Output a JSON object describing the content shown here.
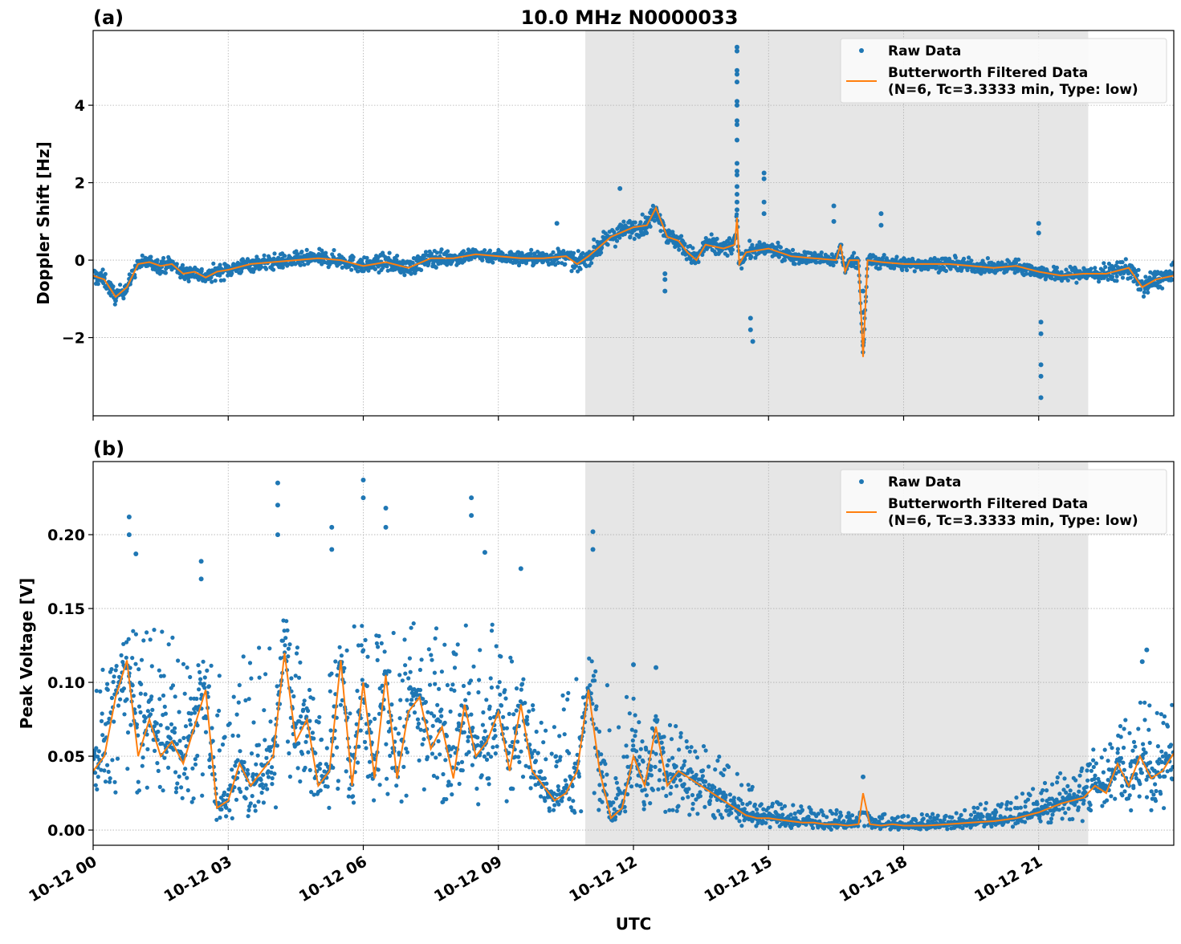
{
  "title": "10.0 MHz N0000033",
  "colors": {
    "raw": "#1f77b4",
    "filtered": "#ff7f0e",
    "shade": "#e6e6e6",
    "grid": "#b0b0b0"
  },
  "shaded_interval_hours": [
    10.93,
    22.1
  ],
  "x_axis": {
    "label": "UTC",
    "range_hours": [
      0,
      24
    ],
    "ticks": [
      {
        "hour": 0,
        "label": "10-12 00"
      },
      {
        "hour": 3,
        "label": "10-12 03"
      },
      {
        "hour": 6,
        "label": "10-12 06"
      },
      {
        "hour": 9,
        "label": "10-12 09"
      },
      {
        "hour": 12,
        "label": "10-12 12"
      },
      {
        "hour": 15,
        "label": "10-12 15"
      },
      {
        "hour": 18,
        "label": "10-12 18"
      },
      {
        "hour": 21,
        "label": "10-12 21"
      }
    ]
  },
  "legend": {
    "raw": "Raw Data",
    "filtered_line1": "Butterworth Filtered Data",
    "filtered_line2": "(N=6, Tc=3.3333 min, Type: low)",
    "placement": "top-right"
  },
  "chart_data": [
    {
      "type": "scatter+line",
      "panel_label": "(a)",
      "ylabel": "Doppler Shift [Hz]",
      "ylim": [
        -4.02,
        5.93
      ],
      "yticks": [
        {
          "v": -2,
          "label": "−2"
        },
        {
          "v": 0,
          "label": "0"
        },
        {
          "v": 2,
          "label": "2"
        },
        {
          "v": 4,
          "label": "4"
        }
      ],
      "grid": true,
      "filtered": [
        [
          0,
          -0.4
        ],
        [
          0.25,
          -0.5
        ],
        [
          0.5,
          -0.95
        ],
        [
          0.75,
          -0.7
        ],
        [
          1.0,
          -0.1
        ],
        [
          1.25,
          -0.05
        ],
        [
          1.5,
          -0.15
        ],
        [
          1.75,
          -0.1
        ],
        [
          2.0,
          -0.35
        ],
        [
          2.25,
          -0.3
        ],
        [
          2.5,
          -0.45
        ],
        [
          2.75,
          -0.3
        ],
        [
          3.0,
          -0.25
        ],
        [
          3.5,
          -0.1
        ],
        [
          4.0,
          -0.05
        ],
        [
          4.5,
          0.0
        ],
        [
          5.0,
          0.05
        ],
        [
          5.5,
          0.0
        ],
        [
          6.0,
          -0.15
        ],
        [
          6.5,
          -0.05
        ],
        [
          7.0,
          -0.2
        ],
        [
          7.5,
          0.05
        ],
        [
          8.0,
          0.05
        ],
        [
          8.5,
          0.15
        ],
        [
          9.0,
          0.1
        ],
        [
          9.5,
          0.05
        ],
        [
          10.0,
          0.05
        ],
        [
          10.5,
          0.1
        ],
        [
          10.75,
          -0.1
        ],
        [
          11.0,
          0.1
        ],
        [
          11.5,
          0.6
        ],
        [
          12.0,
          0.85
        ],
        [
          12.3,
          0.9
        ],
        [
          12.5,
          1.35
        ],
        [
          12.75,
          0.6
        ],
        [
          13.0,
          0.5
        ],
        [
          13.2,
          0.2
        ],
        [
          13.4,
          0.0
        ],
        [
          13.6,
          0.4
        ],
        [
          14.0,
          0.3
        ],
        [
          14.25,
          0.4
        ],
        [
          14.3,
          1.1
        ],
        [
          14.35,
          -0.1
        ],
        [
          14.5,
          0.2
        ],
        [
          15.0,
          0.3
        ],
        [
          15.5,
          0.1
        ],
        [
          16.0,
          0.05
        ],
        [
          16.5,
          0.0
        ],
        [
          16.6,
          0.4
        ],
        [
          16.7,
          -0.3
        ],
        [
          16.8,
          0.0
        ],
        [
          17.0,
          0.0
        ],
        [
          17.1,
          -2.5
        ],
        [
          17.2,
          0.0
        ],
        [
          17.5,
          -0.05
        ],
        [
          18.0,
          -0.1
        ],
        [
          18.5,
          -0.1
        ],
        [
          19.0,
          -0.1
        ],
        [
          19.5,
          -0.15
        ],
        [
          20.0,
          -0.2
        ],
        [
          20.5,
          -0.15
        ],
        [
          21.0,
          -0.3
        ],
        [
          21.5,
          -0.4
        ],
        [
          22.0,
          -0.35
        ],
        [
          22.5,
          -0.35
        ],
        [
          23.0,
          -0.2
        ],
        [
          23.3,
          -0.7
        ],
        [
          23.6,
          -0.5
        ],
        [
          24.0,
          -0.4
        ]
      ],
      "raw_spread": [
        [
          0,
          0.4
        ],
        [
          1,
          0.3
        ],
        [
          2,
          0.35
        ],
        [
          3,
          0.35
        ],
        [
          4,
          0.35
        ],
        [
          5,
          0.35
        ],
        [
          6,
          0.35
        ],
        [
          7,
          0.4
        ],
        [
          8,
          0.35
        ],
        [
          9,
          0.3
        ],
        [
          10,
          0.35
        ],
        [
          11,
          0.4
        ],
        [
          12,
          0.45
        ],
        [
          13,
          0.4
        ],
        [
          14,
          0.45
        ],
        [
          15,
          0.3
        ],
        [
          16,
          0.3
        ],
        [
          17,
          0.3
        ],
        [
          18,
          0.3
        ],
        [
          19,
          0.3
        ],
        [
          20,
          0.3
        ],
        [
          21,
          0.3
        ],
        [
          22,
          0.35
        ],
        [
          23,
          0.45
        ],
        [
          24,
          0.45
        ]
      ],
      "raw_outliers": [
        [
          14.3,
          5.5
        ],
        [
          14.3,
          5.4
        ],
        [
          14.3,
          4.9
        ],
        [
          14.3,
          4.8
        ],
        [
          14.3,
          4.6
        ],
        [
          14.3,
          4.1
        ],
        [
          14.3,
          4.0
        ],
        [
          14.3,
          3.6
        ],
        [
          14.3,
          3.5
        ],
        [
          14.3,
          3.1
        ],
        [
          14.3,
          2.5
        ],
        [
          14.3,
          2.3
        ],
        [
          14.3,
          2.2
        ],
        [
          14.3,
          1.9
        ],
        [
          14.3,
          1.7
        ],
        [
          14.3,
          1.5
        ],
        [
          14.3,
          1.3
        ],
        [
          14.9,
          2.25
        ],
        [
          14.9,
          2.1
        ],
        [
          14.9,
          1.5
        ],
        [
          14.9,
          1.2
        ],
        [
          12.7,
          -0.35
        ],
        [
          12.7,
          -0.5
        ],
        [
          12.7,
          -0.8
        ],
        [
          14.6,
          -1.5
        ],
        [
          14.6,
          -1.8
        ],
        [
          14.65,
          -2.1
        ],
        [
          17.1,
          -2.1
        ],
        [
          17.1,
          -2.2
        ],
        [
          17.1,
          -1.35
        ],
        [
          17.1,
          -0.8
        ],
        [
          21.0,
          0.95
        ],
        [
          21.0,
          0.7
        ],
        [
          21.05,
          -1.6
        ],
        [
          21.05,
          -1.9
        ],
        [
          21.05,
          -2.7
        ],
        [
          21.05,
          -3.0
        ],
        [
          21.05,
          -3.55
        ],
        [
          16.45,
          1.4
        ],
        [
          16.45,
          1.0
        ],
        [
          17.5,
          1.2
        ],
        [
          17.5,
          0.9
        ],
        [
          11.7,
          1.85
        ],
        [
          10.3,
          0.95
        ]
      ]
    },
    {
      "type": "scatter+line",
      "panel_label": "(b)",
      "ylabel": "Peak Voltage [V]",
      "ylim": [
        -0.0103,
        0.2495
      ],
      "yticks": [
        {
          "v": 0,
          "label": "0.00"
        },
        {
          "v": 0.05,
          "label": "0.05"
        },
        {
          "v": 0.1,
          "label": "0.10"
        },
        {
          "v": 0.15,
          "label": "0.15"
        },
        {
          "v": 0.2,
          "label": "0.20"
        }
      ],
      "grid": true,
      "filtered": [
        [
          0,
          0.04
        ],
        [
          0.25,
          0.05
        ],
        [
          0.5,
          0.09
        ],
        [
          0.75,
          0.115
        ],
        [
          1.0,
          0.05
        ],
        [
          1.25,
          0.075
        ],
        [
          1.5,
          0.05
        ],
        [
          1.75,
          0.06
        ],
        [
          2.0,
          0.045
        ],
        [
          2.25,
          0.07
        ],
        [
          2.5,
          0.095
        ],
        [
          2.75,
          0.015
        ],
        [
          3.0,
          0.02
        ],
        [
          3.25,
          0.045
        ],
        [
          3.5,
          0.03
        ],
        [
          3.75,
          0.04
        ],
        [
          4.0,
          0.05
        ],
        [
          4.25,
          0.12
        ],
        [
          4.5,
          0.06
        ],
        [
          4.75,
          0.075
        ],
        [
          5.0,
          0.03
        ],
        [
          5.25,
          0.04
        ],
        [
          5.5,
          0.115
        ],
        [
          5.75,
          0.03
        ],
        [
          6.0,
          0.1
        ],
        [
          6.25,
          0.035
        ],
        [
          6.5,
          0.105
        ],
        [
          6.75,
          0.035
        ],
        [
          7.0,
          0.08
        ],
        [
          7.25,
          0.09
        ],
        [
          7.5,
          0.055
        ],
        [
          7.75,
          0.07
        ],
        [
          8.0,
          0.035
        ],
        [
          8.25,
          0.085
        ],
        [
          8.5,
          0.05
        ],
        [
          8.75,
          0.06
        ],
        [
          9.0,
          0.08
        ],
        [
          9.25,
          0.04
        ],
        [
          9.5,
          0.085
        ],
        [
          9.75,
          0.04
        ],
        [
          10.0,
          0.03
        ],
        [
          10.25,
          0.02
        ],
        [
          10.5,
          0.025
        ],
        [
          10.75,
          0.04
        ],
        [
          11.0,
          0.095
        ],
        [
          11.25,
          0.04
        ],
        [
          11.5,
          0.008
        ],
        [
          11.75,
          0.015
        ],
        [
          12.0,
          0.05
        ],
        [
          12.25,
          0.03
        ],
        [
          12.5,
          0.07
        ],
        [
          12.75,
          0.03
        ],
        [
          13.0,
          0.04
        ],
        [
          13.25,
          0.035
        ],
        [
          13.5,
          0.03
        ],
        [
          13.75,
          0.025
        ],
        [
          14.0,
          0.02
        ],
        [
          14.25,
          0.015
        ],
        [
          14.5,
          0.01
        ],
        [
          14.75,
          0.008
        ],
        [
          15.0,
          0.008
        ],
        [
          15.25,
          0.007
        ],
        [
          15.5,
          0.006
        ],
        [
          15.75,
          0.005
        ],
        [
          16.0,
          0.005
        ],
        [
          16.25,
          0.004
        ],
        [
          16.5,
          0.004
        ],
        [
          16.75,
          0.003
        ],
        [
          17.0,
          0.004
        ],
        [
          17.1,
          0.025
        ],
        [
          17.25,
          0.004
        ],
        [
          17.5,
          0.003
        ],
        [
          17.75,
          0.004
        ],
        [
          18.0,
          0.003
        ],
        [
          18.5,
          0.003
        ],
        [
          19.0,
          0.004
        ],
        [
          19.5,
          0.005
        ],
        [
          20.0,
          0.006
        ],
        [
          20.5,
          0.008
        ],
        [
          21.0,
          0.012
        ],
        [
          21.5,
          0.018
        ],
        [
          22.0,
          0.022
        ],
        [
          22.25,
          0.03
        ],
        [
          22.5,
          0.025
        ],
        [
          22.75,
          0.045
        ],
        [
          23.0,
          0.03
        ],
        [
          23.25,
          0.05
        ],
        [
          23.5,
          0.035
        ],
        [
          23.75,
          0.04
        ],
        [
          24.0,
          0.052
        ]
      ],
      "raw_envelope": [
        [
          0,
          0.01,
          0.1
        ],
        [
          1,
          0.01,
          0.14
        ],
        [
          2,
          0.01,
          0.13
        ],
        [
          3,
          0.005,
          0.1
        ],
        [
          4,
          0.01,
          0.16
        ],
        [
          5,
          0.01,
          0.1
        ],
        [
          6,
          0.01,
          0.15
        ],
        [
          7,
          0.01,
          0.14
        ],
        [
          8,
          0.01,
          0.14
        ],
        [
          9,
          0.01,
          0.14
        ],
        [
          10,
          0.01,
          0.08
        ],
        [
          11,
          0.005,
          0.12
        ],
        [
          12,
          0.005,
          0.09
        ],
        [
          13,
          0.005,
          0.07
        ],
        [
          14,
          0.003,
          0.05
        ],
        [
          15,
          0.001,
          0.02
        ],
        [
          16,
          0.0,
          0.015
        ],
        [
          17,
          0.0,
          0.012
        ],
        [
          18,
          0.0,
          0.01
        ],
        [
          19,
          0.0,
          0.012
        ],
        [
          20,
          0.001,
          0.02
        ],
        [
          21,
          0.002,
          0.03
        ],
        [
          22,
          0.005,
          0.05
        ],
        [
          23,
          0.01,
          0.09
        ],
        [
          24,
          0.015,
          0.09
        ]
      ],
      "raw_outliers": [
        [
          0.8,
          0.212
        ],
        [
          0.8,
          0.2
        ],
        [
          0.95,
          0.187
        ],
        [
          2.4,
          0.182
        ],
        [
          2.4,
          0.17
        ],
        [
          4.1,
          0.235
        ],
        [
          4.1,
          0.22
        ],
        [
          4.1,
          0.2
        ],
        [
          5.3,
          0.205
        ],
        [
          5.3,
          0.19
        ],
        [
          6.0,
          0.237
        ],
        [
          6.0,
          0.225
        ],
        [
          6.5,
          0.218
        ],
        [
          6.5,
          0.205
        ],
        [
          8.4,
          0.225
        ],
        [
          8.4,
          0.213
        ],
        [
          8.7,
          0.188
        ],
        [
          9.5,
          0.177
        ],
        [
          11.1,
          0.202
        ],
        [
          11.1,
          0.19
        ],
        [
          12.0,
          0.112
        ],
        [
          12.5,
          0.11
        ],
        [
          17.1,
          0.036
        ],
        [
          23.4,
          0.122
        ],
        [
          23.3,
          0.114
        ]
      ]
    }
  ]
}
